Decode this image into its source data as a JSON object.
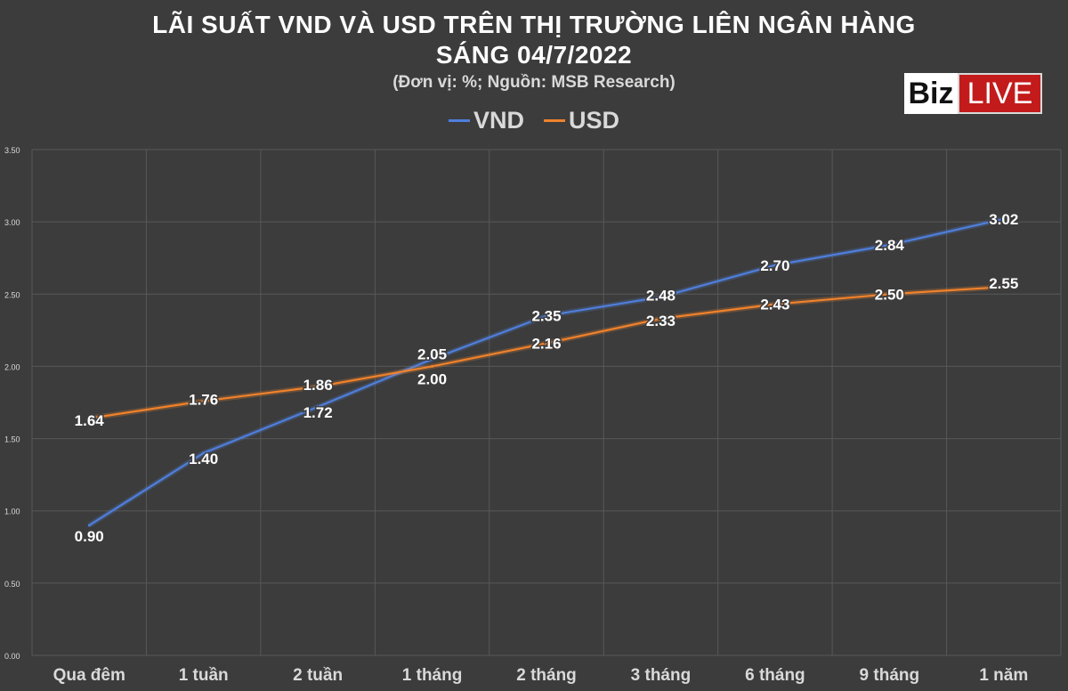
{
  "header": {
    "title_line1": "LÃI SUẤT VND VÀ USD TRÊN THỊ TRƯỜNG LIÊN NGÂN HÀNG",
    "title_line2": "SÁNG 04/7/2022",
    "subtitle": "(Đơn vị: %; Nguồn: MSB Research)"
  },
  "logo": {
    "part1": "Biz",
    "part2": "LIVE",
    "icon": "bizlive-logo"
  },
  "colors": {
    "background": "#3c3c3c",
    "grid": "#585858",
    "vnd": "#4f7fdc",
    "usd": "#f0822c",
    "label": "#ffffff",
    "axis_text": "#d9d9d9"
  },
  "chart_data": {
    "type": "line",
    "title": "LÃI SUẤT VND VÀ USD TRÊN THỊ TRƯỜNG LIÊN NGÂN HÀNG SÁNG 04/7/2022",
    "subtitle": "(Đơn vị: %; Nguồn: MSB Research)",
    "categories": [
      "Qua đêm",
      "1 tuần",
      "2 tuần",
      "1 tháng",
      "2 tháng",
      "3 tháng",
      "6 tháng",
      "9 tháng",
      "1 năm"
    ],
    "series": [
      {
        "name": "VND",
        "color": "#4f7fdc",
        "values": [
          0.9,
          1.4,
          1.72,
          2.05,
          2.35,
          2.48,
          2.7,
          2.84,
          3.02
        ],
        "labels": [
          "0.90",
          "1.40",
          "1.72",
          "2.05",
          "2.35",
          "2.48",
          "2.70",
          "2.84",
          "3.02"
        ]
      },
      {
        "name": "USD",
        "color": "#f0822c",
        "values": [
          1.64,
          1.76,
          1.86,
          2.0,
          2.16,
          2.33,
          2.43,
          2.5,
          2.55
        ],
        "labels": [
          "1.64",
          "1.76",
          "1.86",
          "2.00",
          "2.16",
          "2.33",
          "2.43",
          "2.50",
          "2.55"
        ]
      }
    ],
    "ylim": [
      0,
      3.5
    ],
    "yticks": [
      "0.00",
      "0.50",
      "1.00",
      "1.50",
      "2.00",
      "2.50",
      "3.00",
      "3.50"
    ],
    "grid": true,
    "legend_position": "top-center"
  }
}
